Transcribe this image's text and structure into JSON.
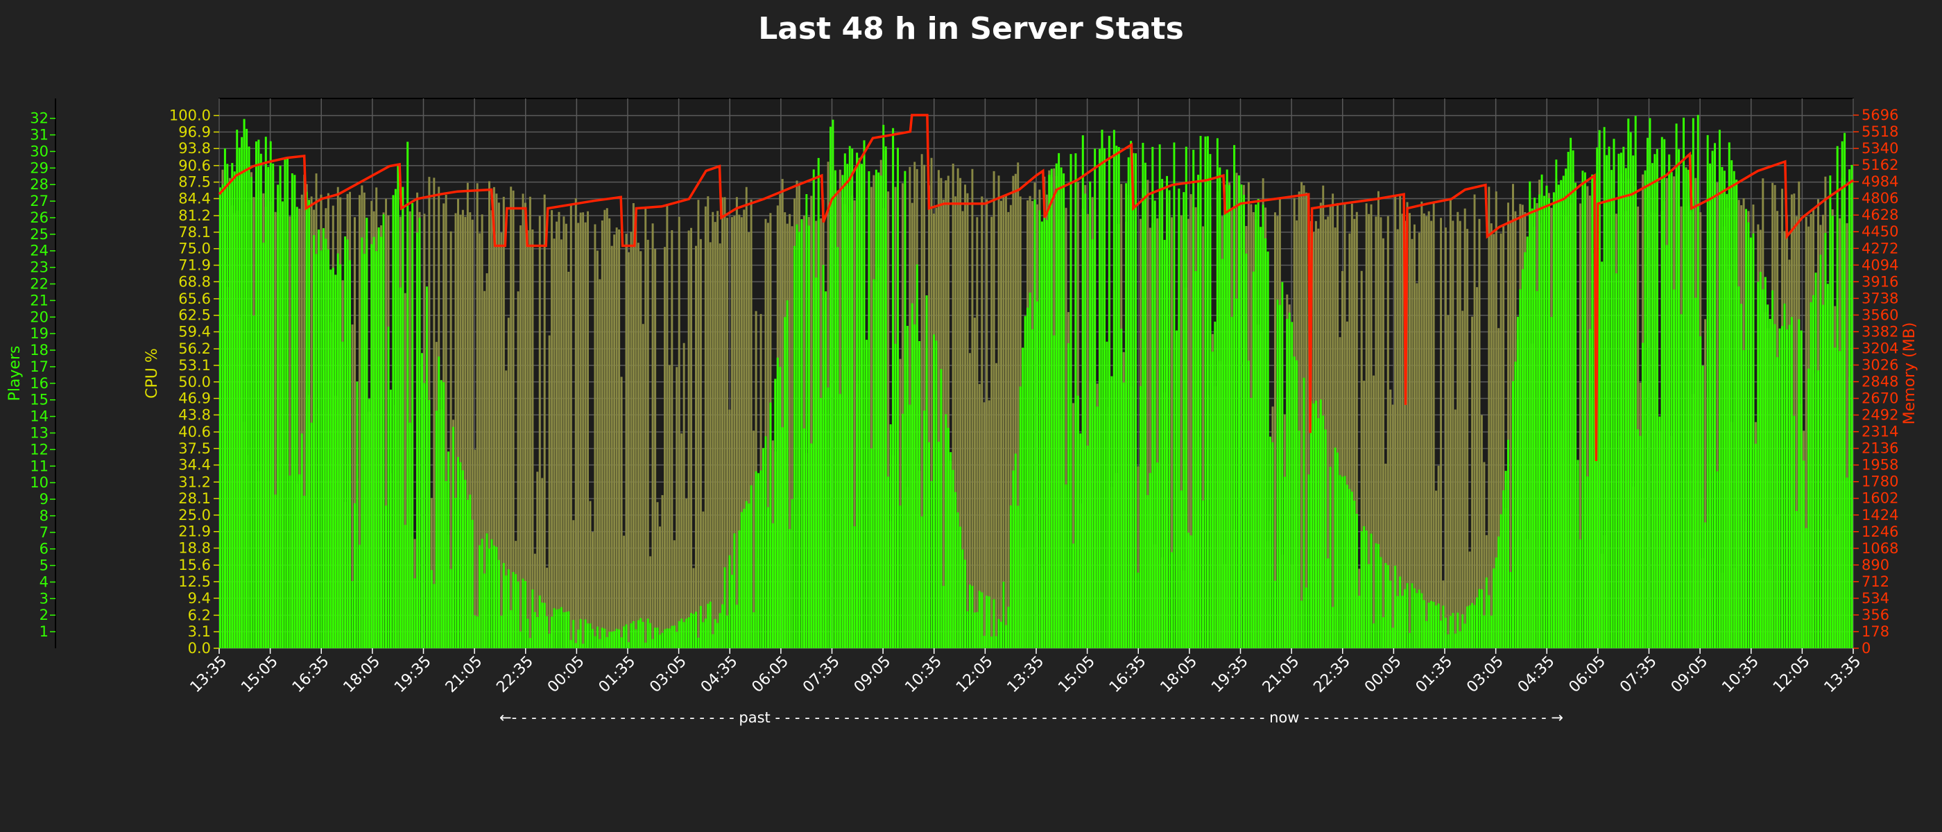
{
  "chart_data": {
    "type": "line",
    "title": "Last 48 h in Server Stats",
    "x_label_annotation": "←- - - - - - - - - - - - - - - - - - - - - - - past - - - - - - - - - - - - - - - - - - - - - - - - - - - - - - - - - - - - - - - - - - - - - - - - - - now - - - - - - - - - - - - - - - - - - - - - - - - - →",
    "xticks": [
      "13:35",
      "15:05",
      "16:35",
      "18:05",
      "19:35",
      "21:05",
      "22:35",
      "00:05",
      "01:35",
      "03:05",
      "04:35",
      "06:05",
      "07:35",
      "09:05",
      "10:35",
      "12:05",
      "13:35",
      "15:05",
      "16:35",
      "18:05",
      "19:35",
      "21:05",
      "22:35",
      "00:05",
      "01:35",
      "03:05",
      "04:35",
      "06:05",
      "07:35",
      "09:05",
      "10:35",
      "12:05",
      "13:35"
    ],
    "x_hours_range": [
      0,
      48
    ],
    "axes": {
      "players": {
        "label": "Players",
        "color": "#33ff00",
        "ylim": [
          0,
          33.2
        ],
        "ticks": [
          "1",
          "2",
          "3",
          "4",
          "5",
          "6",
          "7",
          "8",
          "9",
          "10",
          "11",
          "12",
          "13",
          "14",
          "15",
          "16",
          "17",
          "18",
          "19",
          "20",
          "21",
          "22",
          "23",
          "24",
          "25",
          "26",
          "27",
          "28",
          "29",
          "30",
          "31",
          "32"
        ]
      },
      "cpu": {
        "label": "CPU %",
        "color": "#dddd00",
        "ylim": [
          0,
          103.2
        ],
        "ticks": [
          "0.0",
          "3.1",
          "6.2",
          "9.4",
          "12.5",
          "15.6",
          "18.8",
          "21.9",
          "25.0",
          "28.1",
          "31.2",
          "34.4",
          "37.5",
          "40.6",
          "43.8",
          "46.9",
          "50.0",
          "53.1",
          "56.2",
          "59.4",
          "62.5",
          "65.6",
          "68.8",
          "71.9",
          "75.0",
          "78.1",
          "81.2",
          "84.4",
          "87.5",
          "90.6",
          "93.8",
          "96.9",
          "100.0"
        ]
      },
      "memory": {
        "label": "Memory (MB)",
        "color": "#ff3300",
        "ylim": [
          0,
          5874
        ],
        "ticks": [
          "0",
          "178",
          "356",
          "534",
          "712",
          "890",
          "1068",
          "1246",
          "1424",
          "1602",
          "1780",
          "1958",
          "2136",
          "2314",
          "2492",
          "2670",
          "2848",
          "3026",
          "3204",
          "3382",
          "3560",
          "3738",
          "3916",
          "4094",
          "4272",
          "4450",
          "4628",
          "4806",
          "4984",
          "5162",
          "5340",
          "5518",
          "5696"
        ]
      }
    },
    "grid": true,
    "series": [
      {
        "name": "Players",
        "axis": "players",
        "style": "bars",
        "color": "#33ff00",
        "profile_hours": [
          0,
          0.5,
          1.5,
          2.5,
          3.3,
          4.5,
          5.5,
          6.5,
          7.5,
          8.5,
          9.5,
          10.5,
          11.5,
          12.5,
          13,
          14.5,
          16,
          17,
          18,
          19,
          20,
          21,
          22,
          23,
          24,
          25,
          26,
          27,
          28.5,
          29.5,
          30.5,
          31.5,
          32.5,
          33.5,
          34.5,
          35.5,
          36.5,
          37.5,
          38.5,
          39.5,
          40.5,
          41.5,
          42.5,
          43.5,
          44.5,
          45.5,
          46.5,
          47.5,
          48
        ],
        "profile_values": [
          30,
          32,
          31,
          28,
          24,
          26,
          31,
          18,
          8,
          5,
          3,
          2,
          1,
          2,
          1,
          3,
          12,
          26,
          32,
          31,
          31,
          20,
          4,
          3,
          28,
          30,
          31,
          30,
          30,
          31,
          28,
          20,
          14,
          8,
          5,
          3,
          2,
          5,
          28,
          31,
          31,
          32,
          31,
          32,
          30,
          22,
          20,
          30,
          32
        ],
        "noise": 0.35
      },
      {
        "name": "CPU %",
        "axis": "cpu",
        "style": "bars",
        "color": "#888844",
        "profile_hours": [
          0,
          2,
          4,
          6,
          8,
          10,
          12,
          14,
          16,
          18,
          20,
          22,
          24,
          26,
          28,
          30,
          32,
          34,
          36,
          38,
          40,
          42,
          44,
          46,
          48
        ],
        "profile_values": [
          88,
          90,
          85,
          87,
          86,
          84,
          82,
          83,
          86,
          90,
          92,
          89,
          90,
          88,
          87,
          88,
          86,
          85,
          84,
          86,
          90,
          91,
          88,
          86,
          88
        ],
        "noise": 0.3
      },
      {
        "name": "Memory (MB)",
        "axis": "memory",
        "style": "line",
        "color": "#ff2200",
        "points": [
          [
            0,
            4850
          ],
          [
            0.5,
            5050
          ],
          [
            1.0,
            5150
          ],
          [
            1.5,
            5200
          ],
          [
            2.0,
            5240
          ],
          [
            2.5,
            5260
          ],
          [
            2.55,
            4700
          ],
          [
            3.0,
            4800
          ],
          [
            3.5,
            4850
          ],
          [
            4.0,
            4950
          ],
          [
            4.5,
            5050
          ],
          [
            5.0,
            5150
          ],
          [
            5.3,
            5170
          ],
          [
            5.35,
            4700
          ],
          [
            5.8,
            4800
          ],
          [
            6.5,
            4850
          ],
          [
            7.0,
            4880
          ],
          [
            8.0,
            4900
          ],
          [
            8.1,
            4300
          ],
          [
            8.4,
            4300
          ],
          [
            8.45,
            4700
          ],
          [
            9.0,
            4700
          ],
          [
            9.05,
            4300
          ],
          [
            9.6,
            4300
          ],
          [
            9.65,
            4700
          ],
          [
            10.5,
            4750
          ],
          [
            11.0,
            4780
          ],
          [
            11.8,
            4820
          ],
          [
            11.85,
            4300
          ],
          [
            12.2,
            4300
          ],
          [
            12.25,
            4700
          ],
          [
            13.0,
            4720
          ],
          [
            13.8,
            4800
          ],
          [
            14.3,
            5100
          ],
          [
            14.7,
            5150
          ],
          [
            14.75,
            4600
          ],
          [
            15.2,
            4700
          ],
          [
            16.0,
            4800
          ],
          [
            17.0,
            4950
          ],
          [
            17.7,
            5050
          ],
          [
            17.75,
            4550
          ],
          [
            18.0,
            4800
          ],
          [
            18.5,
            5000
          ],
          [
            18.8,
            5200
          ],
          [
            19.2,
            5450
          ],
          [
            20.0,
            5500
          ],
          [
            20.3,
            5520
          ],
          [
            20.35,
            5696
          ],
          [
            20.8,
            5696
          ],
          [
            20.85,
            4700
          ],
          [
            21.3,
            4750
          ],
          [
            22.5,
            4750
          ],
          [
            23.5,
            4900
          ],
          [
            24.0,
            5050
          ],
          [
            24.2,
            5100
          ],
          [
            24.25,
            4600
          ],
          [
            24.6,
            4900
          ],
          [
            25.2,
            5000
          ],
          [
            26.0,
            5200
          ],
          [
            26.8,
            5380
          ],
          [
            26.85,
            4700
          ],
          [
            27.3,
            4850
          ],
          [
            28.0,
            4950
          ],
          [
            29.0,
            5000
          ],
          [
            29.5,
            5050
          ],
          [
            29.55,
            4650
          ],
          [
            30.0,
            4750
          ],
          [
            31.0,
            4800
          ],
          [
            32.0,
            4850
          ],
          [
            32.05,
            2300
          ],
          [
            32.1,
            4700
          ],
          [
            33.0,
            4750
          ],
          [
            34.0,
            4800
          ],
          [
            34.8,
            4850
          ],
          [
            34.85,
            2600
          ],
          [
            34.9,
            4700
          ],
          [
            35.5,
            4750
          ],
          [
            36.2,
            4800
          ],
          [
            36.6,
            4900
          ],
          [
            37.2,
            4950
          ],
          [
            37.25,
            4400
          ],
          [
            37.6,
            4500
          ],
          [
            38.5,
            4650
          ],
          [
            39.5,
            4800
          ],
          [
            40.0,
            4950
          ],
          [
            40.4,
            5050
          ],
          [
            40.45,
            2000
          ],
          [
            40.5,
            4750
          ],
          [
            41.5,
            4850
          ],
          [
            42.5,
            5050
          ],
          [
            43.2,
            5280
          ],
          [
            43.25,
            4700
          ],
          [
            43.8,
            4800
          ],
          [
            44.5,
            4950
          ],
          [
            45.2,
            5100
          ],
          [
            46.0,
            5200
          ],
          [
            46.05,
            4400
          ],
          [
            46.5,
            4600
          ],
          [
            47.2,
            4800
          ],
          [
            48.0,
            5000
          ]
        ]
      }
    ]
  }
}
